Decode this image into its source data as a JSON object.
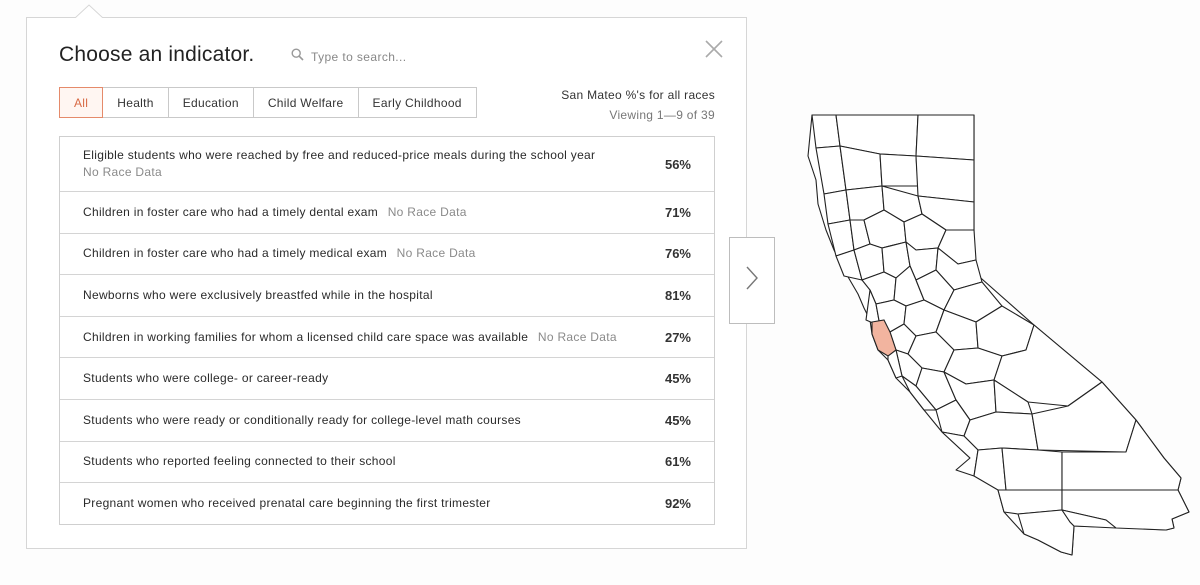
{
  "panel": {
    "title": "Choose an indicator.",
    "search_placeholder": "Type to search...",
    "close_icon": "close-icon"
  },
  "filters": [
    "All",
    "Health",
    "Education",
    "Child Welfare",
    "Early Childhood"
  ],
  "active_filter": "All",
  "meta": {
    "scope": "San Mateo %'s for all races",
    "viewing": "Viewing 1—9 of 39"
  },
  "rows": [
    {
      "label": "Eligible students who were reached by free and reduced-price meals during the school year",
      "note": "No Race Data",
      "value": "56%"
    },
    {
      "label": "Children in foster care who had a timely dental exam",
      "note": "No Race Data",
      "value": "71%"
    },
    {
      "label": "Children in foster care who had a timely medical exam",
      "note": "No Race Data",
      "value": "76%"
    },
    {
      "label": "Newborns who were exclusively breastfed while in the hospital",
      "note": "",
      "value": "81%"
    },
    {
      "label": "Children in working families for whom a licensed child care space was available",
      "note": "No Race Data",
      "value": "27%"
    },
    {
      "label": "Students who were college- or career-ready",
      "note": "",
      "value": "45%"
    },
    {
      "label": "Students who were ready or conditionally ready for college-level math courses",
      "note": "",
      "value": "45%"
    },
    {
      "label": "Students who reported feeling connected to their school",
      "note": "",
      "value": "61%"
    },
    {
      "label": "Pregnant women who received prenatal care beginning the first trimester",
      "note": "",
      "value": "92%"
    }
  ],
  "map": {
    "region": "California counties",
    "highlighted_county": "San Mateo",
    "highlight_color": "#f2b49f"
  },
  "colors": {
    "accent": "#e58a6a",
    "border": "#cfcfcf"
  }
}
